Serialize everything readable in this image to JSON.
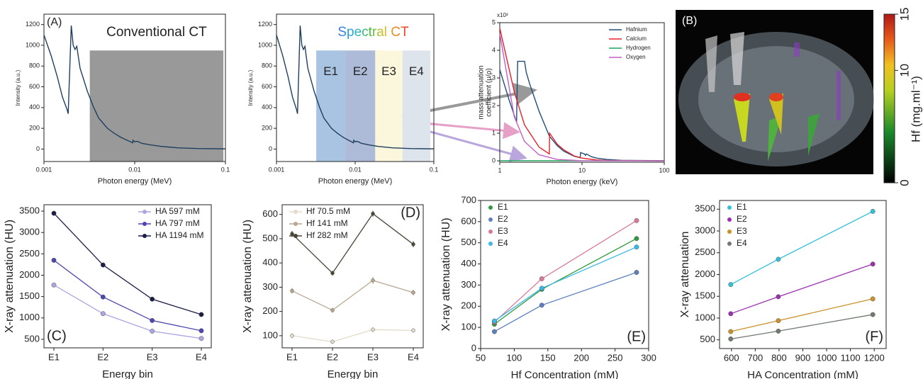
{
  "chart_data": [
    {
      "type": "line",
      "panel_label": "(A)",
      "title": "Conventional CT",
      "xlabel": "Photon energy (MeV)",
      "ylabel": "Intensity (a.u.)",
      "xscale": "log",
      "xlim": [
        0.001,
        0.1
      ],
      "xticks": [
        0.001,
        0.01,
        0.1
      ],
      "ylim": [
        -120,
        1300
      ],
      "yticks": [
        0,
        200,
        400,
        600,
        800,
        1000,
        1200
      ],
      "shaded_regions": [
        {
          "range": [
            0.0032,
            0.095
          ],
          "top": 950,
          "color": "#999999"
        }
      ],
      "x": [
        0.001,
        0.0012,
        0.0014,
        0.0016,
        0.0018,
        0.00185,
        0.002,
        0.0021,
        0.0022,
        0.0023,
        0.0025,
        0.003,
        0.0035,
        0.004,
        0.005,
        0.006,
        0.007,
        0.008,
        0.009,
        0.0095,
        0.0096,
        0.01,
        0.0105,
        0.011,
        0.012,
        0.015,
        0.02,
        0.03,
        0.05,
        0.1
      ],
      "series": [
        {
          "color": "#1f3f5f",
          "values": [
            1100,
            900,
            700,
            500,
            380,
            340,
            1190,
            1000,
            960,
            990,
            780,
            560,
            410,
            300,
            200,
            150,
            115,
            90,
            70,
            60,
            85,
            70,
            75,
            70,
            55,
            40,
            25,
            12,
            5,
            2
          ]
        }
      ]
    },
    {
      "type": "line",
      "title": "Spectral CT",
      "xlabel": "Photon energy (MeV)",
      "ylabel": "Intensity (a.u.)",
      "xscale": "log",
      "xlim": [
        0.001,
        0.1
      ],
      "xticks": [
        0.001,
        0.01,
        0.1
      ],
      "ylim": [
        -120,
        1300
      ],
      "yticks": [
        0,
        200,
        400,
        600,
        800,
        1000,
        1200
      ],
      "energy_bins_top": 950,
      "energy_bins": [
        {
          "label": "E1",
          "range": [
            0.0032,
            0.0075
          ],
          "color": "#a9c4e2"
        },
        {
          "label": "E2",
          "range": [
            0.0075,
            0.018
          ],
          "color": "#aebbd8"
        },
        {
          "label": "E3",
          "range": [
            0.018,
            0.04
          ],
          "color": "#fbf7dc"
        },
        {
          "label": "E4",
          "range": [
            0.04,
            0.09
          ],
          "color": "#dee4ec"
        }
      ],
      "x": [
        0.001,
        0.0012,
        0.0014,
        0.0016,
        0.0018,
        0.00185,
        0.002,
        0.0021,
        0.0022,
        0.0023,
        0.0025,
        0.003,
        0.0035,
        0.004,
        0.005,
        0.006,
        0.007,
        0.008,
        0.009,
        0.0095,
        0.0096,
        0.01,
        0.0105,
        0.011,
        0.012,
        0.015,
        0.02,
        0.03,
        0.05,
        0.1
      ],
      "series": [
        {
          "color": "#1f3f5f",
          "values": [
            1100,
            900,
            700,
            500,
            380,
            340,
            1190,
            1000,
            960,
            990,
            780,
            560,
            410,
            300,
            200,
            150,
            115,
            90,
            70,
            60,
            85,
            70,
            75,
            70,
            55,
            40,
            25,
            12,
            5,
            2
          ]
        }
      ]
    },
    {
      "type": "line",
      "xlabel": "Photon energy (keV)",
      "ylabel": [
        "mass attenuation",
        "coefficient (μ/ρ)"
      ],
      "y_multiplier": "x10³",
      "xscale": "log",
      "xlim": [
        1,
        100
      ],
      "xticks": [
        1,
        10,
        100
      ],
      "ylim": [
        -0.05,
        5
      ],
      "yticks": [
        0,
        1,
        2,
        3,
        4,
        5
      ],
      "legend": "top-right",
      "series": [
        {
          "name": "Hafnium",
          "color": "#1f4e79",
          "x": [
            1,
            1.3,
            1.6,
            1.65,
            1.8,
            2.0,
            2.1,
            2.3,
            3,
            4,
            5,
            6,
            8,
            9.5,
            9.6,
            10.7,
            11,
            11.3,
            13,
            15,
            20,
            30,
            100
          ],
          "values": [
            3.3,
            2.2,
            1.4,
            3.6,
            3.6,
            3.6,
            3.2,
            2.8,
            1.8,
            0.9,
            0.55,
            0.35,
            0.17,
            0.11,
            0.3,
            0.25,
            0.2,
            0.25,
            0.15,
            0.1,
            0.05,
            0.02,
            0.005
          ]
        },
        {
          "name": "Calcium",
          "color": "#e8202a",
          "x": [
            1,
            1.5,
            2,
            3,
            4,
            4.04,
            5,
            6,
            8,
            10,
            15,
            20,
            100
          ],
          "values": [
            4.8,
            2.5,
            1.3,
            0.5,
            0.25,
            1.0,
            0.6,
            0.4,
            0.18,
            0.1,
            0.03,
            0.015,
            0.0005
          ]
        },
        {
          "name": "Hydrogen",
          "color": "#1aa55a",
          "x": [
            1,
            100
          ],
          "values": [
            0.007,
            0.0003
          ]
        },
        {
          "name": "Oxygen",
          "color": "#c55ec8",
          "x": [
            1,
            1.5,
            2,
            3,
            5,
            10,
            100
          ],
          "values": [
            4.6,
            1.6,
            0.7,
            0.22,
            0.05,
            0.006,
            0.0002
          ]
        }
      ]
    },
    {
      "type": "image",
      "panel_label": "(B)",
      "colorbar": {
        "label": "Hf (mg.ml⁻¹)",
        "lim": [
          0,
          15
        ],
        "ticks": [
          0,
          10,
          15
        ]
      }
    },
    {
      "type": "line",
      "panel_label": "(C)",
      "xlabel": "Energy bin",
      "ylabel": "X-ray attenuation (HU)",
      "categories": [
        "E1",
        "E2",
        "E3",
        "E4"
      ],
      "ylim": [
        300,
        3650
      ],
      "yticks": [
        500,
        1000,
        1500,
        2000,
        2500,
        3000,
        3500
      ],
      "legend": "top-right",
      "markers": true,
      "series": [
        {
          "name": "HA 597 mM",
          "color": "#a9a6e0",
          "values": [
            1770,
            1100,
            690,
            520
          ]
        },
        {
          "name": "HA 797 mM",
          "color": "#4b46b0",
          "values": [
            2350,
            1490,
            940,
            700
          ]
        },
        {
          "name": "HA 1194 mM",
          "color": "#1c1c48",
          "values": [
            3450,
            2240,
            1440,
            1080
          ]
        }
      ]
    },
    {
      "type": "line",
      "panel_label": "(D)",
      "xlabel": "Energy bin",
      "ylabel": "X-ray attenuation (HU)",
      "categories": [
        "E1",
        "E2",
        "E3",
        "E4"
      ],
      "ylim": [
        50,
        640
      ],
      "yticks": [
        100,
        200,
        300,
        400,
        500,
        600
      ],
      "legend": "top-left",
      "markers": true,
      "series": [
        {
          "name": "Hf 70.5 mM",
          "color": "#e4dccb",
          "values": [
            100,
            75,
            125,
            122
          ],
          "errors": [
            12,
            10,
            12,
            10
          ]
        },
        {
          "name": "Hf 141 mM",
          "color": "#b9a890",
          "values": [
            285,
            205,
            328,
            278
          ],
          "errors": [
            12,
            10,
            14,
            12
          ]
        },
        {
          "name": "Hf 282 mM",
          "color": "#4a4636",
          "values": [
            520,
            358,
            603,
            477
          ],
          "errors": [
            12,
            10,
            12,
            12
          ]
        }
      ]
    },
    {
      "type": "scatter",
      "panel_label": "(E)",
      "xlabel": "Hf Concentration (mM)",
      "ylabel": "X-ray attenuation (HU)",
      "xlim": [
        50,
        300
      ],
      "xticks": [
        50,
        100,
        150,
        200,
        250,
        300
      ],
      "ylim": [
        0,
        700
      ],
      "yticks": [
        0,
        100,
        200,
        300,
        400,
        500,
        600,
        700
      ],
      "legend": "top-left",
      "markers": true,
      "x": [
        70.5,
        141,
        282
      ],
      "series": [
        {
          "name": "E1",
          "color": "#2e9a3e",
          "values": [
            115,
            280,
            520
          ]
        },
        {
          "name": "E2",
          "color": "#5b7fc0",
          "values": [
            80,
            205,
            360
          ]
        },
        {
          "name": "E3",
          "color": "#d87a95",
          "values": [
            125,
            330,
            605
          ]
        },
        {
          "name": "E4",
          "color": "#3ab8e6",
          "values": [
            130,
            285,
            480
          ]
        }
      ]
    },
    {
      "type": "scatter",
      "panel_label": "(F)",
      "xlabel": "HA Concentration (mM)",
      "ylabel": "X-ray attenuation",
      "xlim": [
        550,
        1250
      ],
      "xticks": [
        600,
        700,
        800,
        900,
        1000,
        1100,
        1200
      ],
      "ylim": [
        300,
        3700
      ],
      "yticks": [
        500,
        1000,
        1500,
        2000,
        2500,
        3000,
        3500
      ],
      "legend": "top-left",
      "markers": true,
      "x": [
        597,
        797,
        1194
      ],
      "series": [
        {
          "name": "E1",
          "color": "#35c0d8",
          "values": [
            1770,
            2350,
            3450
          ]
        },
        {
          "name": "E2",
          "color": "#9b30b0",
          "values": [
            1100,
            1490,
            2240
          ]
        },
        {
          "name": "E3",
          "color": "#c8912a",
          "values": [
            690,
            940,
            1440
          ]
        },
        {
          "name": "E4",
          "color": "#707a70",
          "values": [
            520,
            700,
            1080
          ]
        }
      ]
    }
  ]
}
